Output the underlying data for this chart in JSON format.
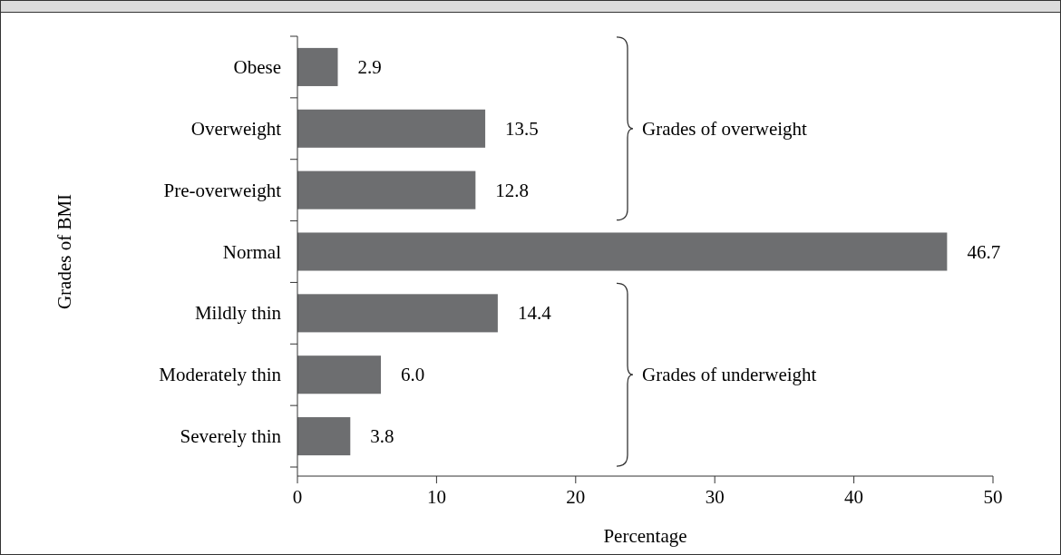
{
  "chart_data": {
    "type": "bar",
    "orientation": "horizontal",
    "xlabel": "Percentage",
    "ylabel": "Grades of BMI",
    "categories": [
      "Obese",
      "Overweight",
      "Pre-overweight",
      "Normal",
      "Mildly thin",
      "Moderately thin",
      "Severely thin"
    ],
    "values": [
      2.9,
      13.5,
      12.8,
      46.7,
      14.4,
      6.0,
      3.8
    ],
    "color": "#6d6e70",
    "value_labels": [
      "2.9",
      "13.5",
      "12.8",
      "46.7",
      "14.4",
      "6.0",
      "3.8"
    ],
    "xlim": [
      0,
      50
    ],
    "xticks": [
      0,
      10,
      20,
      30,
      40,
      50
    ],
    "annotations": [
      "Grades of overweight",
      "Grades of underweight"
    ]
  }
}
